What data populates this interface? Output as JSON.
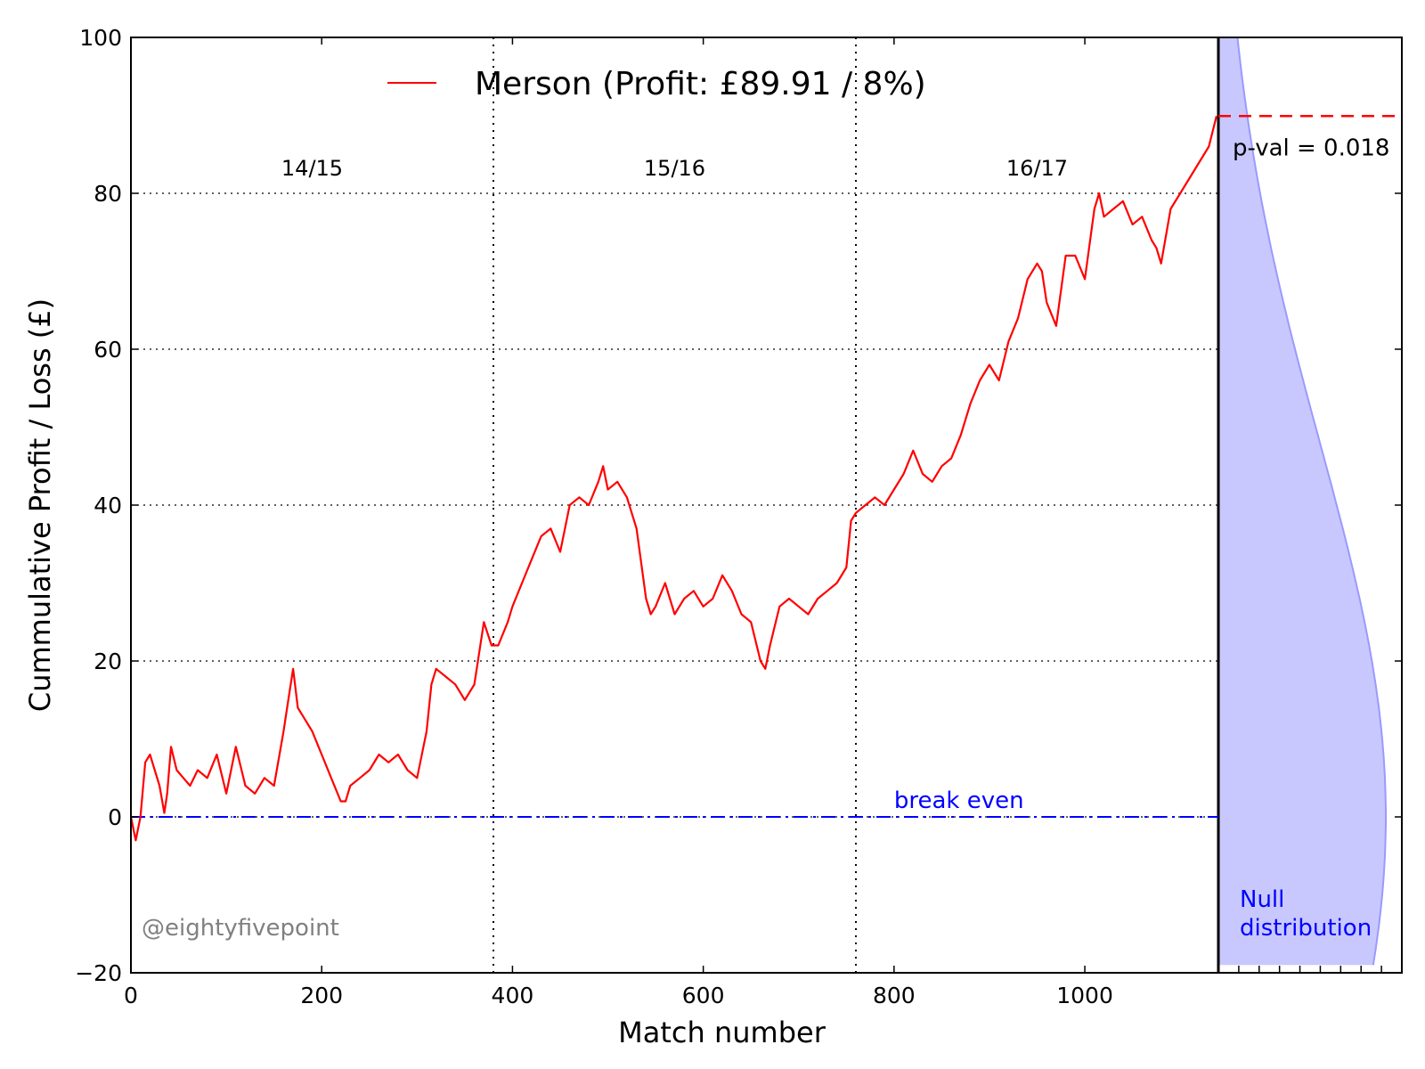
{
  "chart_data": {
    "type": "line",
    "xlabel": "Match number",
    "ylabel": "Cummulative Profit / Loss (£)",
    "xlim": [
      0,
      1140
    ],
    "ylim": [
      -20,
      100
    ],
    "xticks": [
      0,
      200,
      400,
      600,
      800,
      1000
    ],
    "yticks": [
      -20,
      0,
      20,
      40,
      60,
      80,
      100
    ],
    "grid": "horizontal dotted",
    "legend": {
      "position": "top-center",
      "label": "Merson (Profit: £89.91 /  8%)"
    },
    "colors": {
      "series": "#ff0000",
      "break_even": "#0000ff",
      "null_fill": "#c8c8ff",
      "null_edge": "#9a9aff",
      "watermark": "#808080"
    },
    "season_boundaries": [
      380,
      760
    ],
    "season_labels": [
      {
        "text": "14/15",
        "x": 190
      },
      {
        "text": "15/16",
        "x": 570
      },
      {
        "text": "16/17",
        "x": 950
      }
    ],
    "break_even": {
      "label": "break even",
      "y": 0
    },
    "final_profit": 89.91,
    "p_value_label": "p-val = 0.018",
    "null_label": [
      "Null",
      "distribution"
    ],
    "watermark": "@eightyfivepoint",
    "series": [
      {
        "name": "Merson (Profit: £89.91 /  8%)",
        "x": [
          0,
          5,
          10,
          15,
          20,
          30,
          35,
          38,
          42,
          48,
          55,
          62,
          70,
          80,
          90,
          100,
          110,
          120,
          130,
          140,
          150,
          160,
          165,
          170,
          175,
          180,
          190,
          200,
          210,
          220,
          225,
          230,
          240,
          250,
          260,
          270,
          280,
          290,
          300,
          310,
          315,
          320,
          330,
          340,
          350,
          360,
          370,
          378,
          385,
          395,
          400,
          410,
          420,
          430,
          440,
          450,
          460,
          470,
          480,
          490,
          495,
          500,
          510,
          520,
          530,
          540,
          545,
          550,
          560,
          570,
          580,
          590,
          600,
          610,
          620,
          630,
          640,
          650,
          660,
          665,
          670,
          680,
          690,
          700,
          710,
          720,
          730,
          740,
          750,
          755,
          760,
          770,
          780,
          790,
          800,
          810,
          820,
          830,
          840,
          850,
          860,
          870,
          880,
          890,
          900,
          910,
          920,
          930,
          940,
          950,
          955,
          960,
          970,
          980,
          990,
          1000,
          1010,
          1015,
          1020,
          1030,
          1040,
          1050,
          1060,
          1070,
          1075,
          1080,
          1090,
          1100,
          1110,
          1120,
          1130,
          1138
        ],
        "y": [
          0,
          -3,
          0,
          7,
          8,
          4,
          0.5,
          3,
          9,
          6,
          5,
          4,
          6,
          5,
          8,
          3,
          9,
          4,
          3,
          5,
          4,
          11,
          15,
          19,
          14,
          13,
          11,
          8,
          5,
          2,
          2,
          4,
          5,
          6,
          8,
          7,
          8,
          6,
          5,
          11,
          17,
          19,
          18,
          17,
          15,
          17,
          25,
          22,
          22,
          25,
          27,
          30,
          33,
          36,
          37,
          34,
          40,
          41,
          40,
          43,
          45,
          42,
          43,
          41,
          37,
          28,
          26,
          27,
          30,
          26,
          28,
          29,
          27,
          28,
          31,
          29,
          26,
          25,
          20,
          19,
          22,
          27,
          28,
          27,
          26,
          28,
          29,
          30,
          32,
          38,
          39,
          40,
          41,
          40,
          42,
          44,
          47,
          44,
          43,
          45,
          46,
          49,
          53,
          56,
          58,
          56,
          61,
          64,
          69,
          71,
          70,
          66,
          63,
          72,
          72,
          69,
          78,
          80,
          77,
          78,
          79,
          76,
          77,
          74,
          73,
          71,
          78,
          80,
          82,
          84,
          86,
          89.91
        ]
      }
    ]
  }
}
